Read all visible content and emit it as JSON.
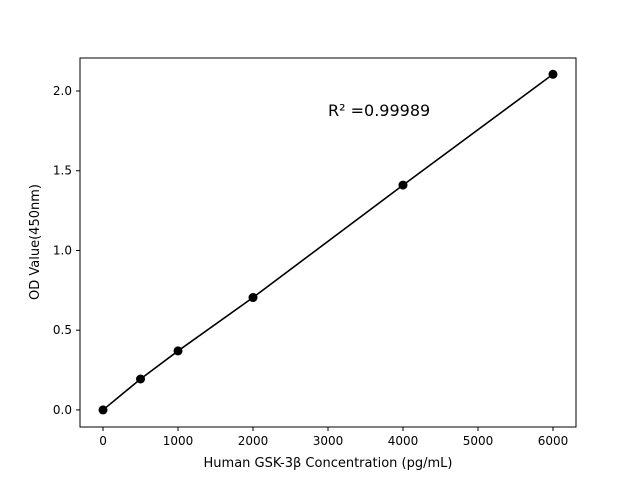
{
  "chart_data": {
    "type": "line",
    "title": "",
    "xlabel": "Human GSK-3β  Concentration (pg/mL)",
    "ylabel": "OD Value(450nm)",
    "x": [
      0,
      500,
      1000,
      2000,
      4000,
      6000
    ],
    "series": [
      {
        "values": [
          0.0,
          0.194,
          0.37,
          0.705,
          1.41,
          2.105
        ],
        "color": "#000000",
        "marker": "circle"
      }
    ],
    "xlim": [
      -307,
      6307
    ],
    "ylim": [
      -0.107,
      2.207
    ],
    "xticks": [
      0,
      1000,
      2000,
      3000,
      4000,
      5000,
      6000
    ],
    "xtick_labels": [
      "0",
      "1000",
      "2000",
      "3000",
      "4000",
      "5000",
      "6000"
    ],
    "yticks": [
      0.0,
      0.5,
      1.0,
      1.5,
      2.0
    ],
    "ytick_labels": [
      "0.0",
      "0.5",
      "1.0",
      "1.5",
      "2.0"
    ],
    "grid": false,
    "annotations": [
      {
        "text": "R² =0.99989",
        "x": 3000,
        "y": 1.88
      }
    ]
  }
}
